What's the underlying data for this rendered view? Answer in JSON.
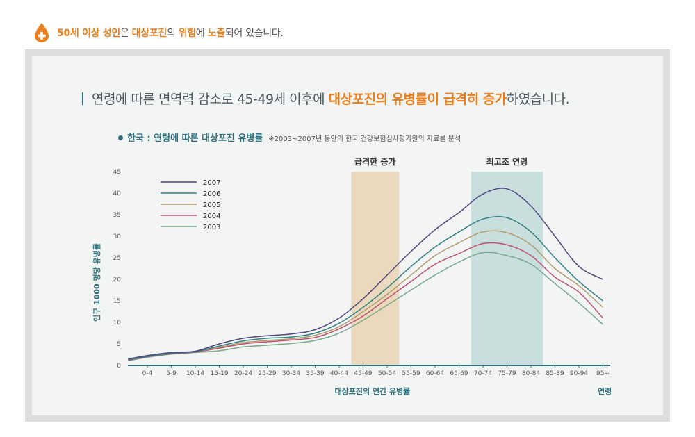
{
  "header": {
    "icon": "plus-drop-icon",
    "segments": [
      {
        "text": "50세 이상 성인",
        "highlight": true
      },
      {
        "text": "은 ",
        "highlight": false
      },
      {
        "text": "대상포진",
        "highlight": true
      },
      {
        "text": "의 ",
        "highlight": false
      },
      {
        "text": "위험",
        "highlight": true
      },
      {
        "text": "에 ",
        "highlight": false
      },
      {
        "text": "노출",
        "highlight": true
      },
      {
        "text": "되어 있습니다.",
        "highlight": false
      }
    ]
  },
  "headline": {
    "segments": [
      {
        "text": "연령에 따른 면역력 감소로  45-49세 이후에 ",
        "highlight": false
      },
      {
        "text": "대상포진의 유병률이 급격히 증가",
        "highlight": true
      },
      {
        "text": "하였습니다.",
        "highlight": false
      }
    ]
  },
  "subtitle": {
    "main": "한국 : 연령에 따른 대상포진 유병률",
    "note": "※2003~2007년 동안의 한국 건강보험심사평가원의 자료를 분석"
  },
  "colors": {
    "accent": "#e87f1e",
    "teal": "#2d6f7c",
    "highlight_band_orange": "#ead9bd",
    "highlight_band_teal": "#c9dfde"
  },
  "chart_data": {
    "type": "line",
    "ylabel": "인구 1000 명당 유병률",
    "xlabel": "대상포진의 연간 유병률",
    "xaxis_end_label": "연령",
    "ylim": [
      0,
      45
    ],
    "yticks": [
      0,
      5,
      10,
      15,
      20,
      25,
      30,
      35,
      40,
      45
    ],
    "categories": [
      "0-4",
      "5-9",
      "10-14",
      "15-19",
      "20-24",
      "25-29",
      "30-34",
      "35-39",
      "40-44",
      "45-49",
      "50-54",
      "55-59",
      "60-64",
      "65-69",
      "70-74",
      "75-79",
      "80-84",
      "85-89",
      "90-94",
      "95+"
    ],
    "x_extent": [
      -0.8,
      19.0
    ],
    "bands": [
      {
        "label": "급격한 증가",
        "from": 9,
        "to": 10,
        "color": "#ead9bd"
      },
      {
        "label": "최고조 연령",
        "from": 14,
        "to": 16,
        "color": "#c9dfde"
      }
    ],
    "series": [
      {
        "name": "2007",
        "color": "#50457e",
        "values": [
          [
            -0.8,
            1.5
          ],
          [
            0,
            2.3
          ],
          [
            1,
            3.0
          ],
          [
            2,
            3.3
          ],
          [
            3,
            5.0
          ],
          [
            4,
            6.3
          ],
          [
            5,
            6.9
          ],
          [
            6,
            7.3
          ],
          [
            7,
            8.3
          ],
          [
            8,
            11.0
          ],
          [
            9,
            15.5
          ],
          [
            10,
            21.0
          ],
          [
            11,
            26.5
          ],
          [
            12,
            31.5
          ],
          [
            13,
            35.5
          ],
          [
            14,
            39.8
          ],
          [
            15,
            41.0
          ],
          [
            16,
            37.0
          ],
          [
            17,
            30.0
          ],
          [
            18,
            23.0
          ],
          [
            19,
            20.0
          ]
        ]
      },
      {
        "name": "2006",
        "color": "#2f7f83",
        "values": [
          [
            -0.8,
            1.3
          ],
          [
            0,
            2.1
          ],
          [
            1,
            2.8
          ],
          [
            2,
            3.2
          ],
          [
            3,
            4.5
          ],
          [
            4,
            5.7
          ],
          [
            5,
            6.3
          ],
          [
            6,
            6.6
          ],
          [
            7,
            7.5
          ],
          [
            8,
            9.8
          ],
          [
            9,
            13.5
          ],
          [
            10,
            18.0
          ],
          [
            11,
            23.0
          ],
          [
            12,
            27.5
          ],
          [
            13,
            31.0
          ],
          [
            14,
            34.0
          ],
          [
            15,
            34.3
          ],
          [
            16,
            31.0
          ],
          [
            17,
            25.0
          ],
          [
            18,
            19.5
          ],
          [
            19,
            15.0
          ]
        ]
      },
      {
        "name": "2005",
        "color": "#b09a6e",
        "values": [
          [
            -0.8,
            1.3
          ],
          [
            0,
            2.1
          ],
          [
            1,
            2.8
          ],
          [
            2,
            3.2
          ],
          [
            3,
            4.2
          ],
          [
            4,
            5.3
          ],
          [
            5,
            5.8
          ],
          [
            6,
            6.2
          ],
          [
            7,
            7.0
          ],
          [
            8,
            9.0
          ],
          [
            9,
            12.5
          ],
          [
            10,
            16.5
          ],
          [
            11,
            21.0
          ],
          [
            12,
            25.5
          ],
          [
            13,
            28.5
          ],
          [
            14,
            31.0
          ],
          [
            15,
            30.8
          ],
          [
            16,
            28.0
          ],
          [
            17,
            22.5
          ],
          [
            18,
            18.5
          ],
          [
            19,
            13.5
          ]
        ]
      },
      {
        "name": "2004",
        "color": "#c04f6e",
        "values": [
          [
            -0.8,
            1.2
          ],
          [
            0,
            2.0
          ],
          [
            1,
            2.7
          ],
          [
            2,
            3.1
          ],
          [
            3,
            4.0
          ],
          [
            4,
            5.0
          ],
          [
            5,
            5.5
          ],
          [
            6,
            5.9
          ],
          [
            7,
            6.5
          ],
          [
            8,
            8.5
          ],
          [
            9,
            11.5
          ],
          [
            10,
            15.5
          ],
          [
            11,
            19.5
          ],
          [
            12,
            23.5
          ],
          [
            13,
            26.0
          ],
          [
            14,
            28.3
          ],
          [
            15,
            28.0
          ],
          [
            16,
            25.5
          ],
          [
            17,
            20.5
          ],
          [
            18,
            17.0
          ],
          [
            19,
            11.0
          ]
        ]
      },
      {
        "name": "2003",
        "color": "#7aa88b",
        "values": [
          [
            -0.8,
            1.1
          ],
          [
            0,
            1.9
          ],
          [
            1,
            2.6
          ],
          [
            2,
            3.0
          ],
          [
            3,
            3.4
          ],
          [
            4,
            4.3
          ],
          [
            5,
            4.7
          ],
          [
            6,
            5.1
          ],
          [
            7,
            5.8
          ],
          [
            8,
            7.5
          ],
          [
            9,
            10.5
          ],
          [
            10,
            14.0
          ],
          [
            11,
            17.5
          ],
          [
            12,
            21.0
          ],
          [
            13,
            24.0
          ],
          [
            14,
            26.2
          ],
          [
            15,
            25.5
          ],
          [
            16,
            23.5
          ],
          [
            17,
            19.0
          ],
          [
            18,
            14.5
          ],
          [
            19,
            9.5
          ]
        ]
      }
    ]
  }
}
